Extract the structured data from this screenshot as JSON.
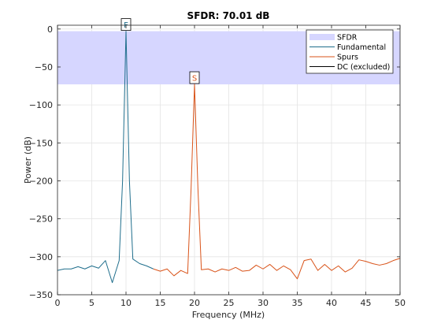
{
  "chart_data": {
    "type": "line",
    "title": "SFDR:  70.01 dB",
    "xlabel": "Frequency (MHz)",
    "ylabel": "Power (dB)",
    "xlim": [
      0,
      50
    ],
    "ylim": [
      -350,
      5
    ],
    "xticks": [
      0,
      5,
      10,
      15,
      20,
      25,
      30,
      35,
      40,
      45,
      50
    ],
    "yticks": [
      0,
      -50,
      -100,
      -150,
      -200,
      -250,
      -300,
      -350
    ],
    "grid": true,
    "legend_position": "top-right",
    "sfdr_band": {
      "name": "SFDR",
      "y_top": -2.9,
      "y_bottom": -72.9,
      "color": "#d6d6ff"
    },
    "series": [
      {
        "name": "Fundamental",
        "color": "#1f6e8c",
        "x": [
          0,
          1,
          2,
          3,
          4,
          5,
          6,
          7,
          8,
          9,
          9.5,
          10,
          10.5,
          11,
          12,
          13,
          14
        ],
        "y": [
          -318,
          -316,
          -316,
          -313,
          -316,
          -312,
          -315,
          -305,
          -334,
          -305,
          -200,
          -2.9,
          -200,
          -303,
          -309,
          -312,
          -316
        ]
      },
      {
        "name": "Spurs",
        "color": "#d95319",
        "x": [
          14,
          15,
          16,
          17,
          18,
          19,
          19.5,
          20,
          20.5,
          21,
          22,
          23,
          24,
          25,
          26,
          27,
          28,
          29,
          30,
          31,
          32,
          33,
          34,
          35,
          36,
          37,
          38,
          39,
          40,
          41,
          42,
          43,
          44,
          45,
          46,
          47,
          48,
          49,
          50
        ],
        "y": [
          -316,
          -319,
          -316,
          -325,
          -318,
          -322,
          -210,
          -72.9,
          -210,
          -317,
          -316,
          -320,
          -316,
          -318,
          -314,
          -319,
          -318,
          -311,
          -316,
          -310,
          -318,
          -312,
          -317,
          -329,
          -305,
          -303,
          -318,
          -310,
          -318,
          -312,
          -320,
          -315,
          -304,
          -306,
          -309,
          -311,
          -309,
          -305,
          -302
        ]
      },
      {
        "name": "DC (excluded)",
        "color": "#000000",
        "x": [
          0
        ],
        "y": [
          -318
        ]
      }
    ],
    "markers": [
      {
        "label": "F",
        "x": 10,
        "y": -2.9,
        "color": "#1f6e8c"
      },
      {
        "label": "S",
        "x": 20,
        "y": -72.9,
        "color": "#d95319"
      }
    ]
  }
}
